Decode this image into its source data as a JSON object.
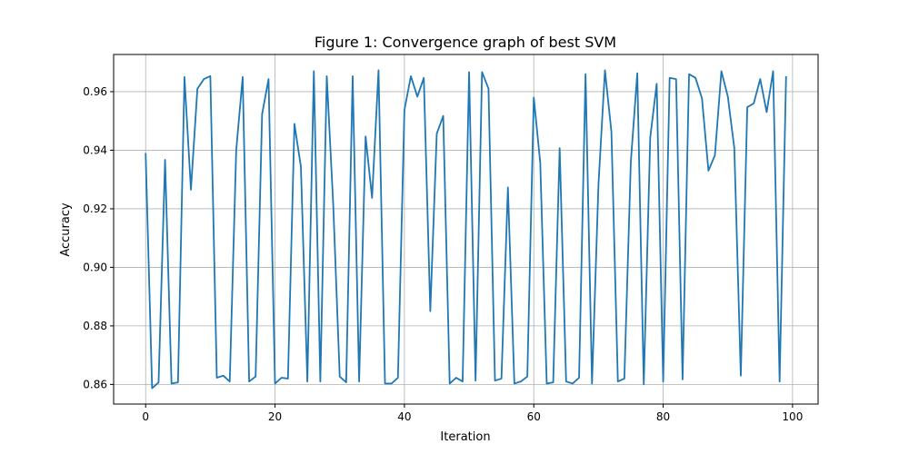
{
  "chart_data": {
    "type": "line",
    "title": "Figure 1: Convergence graph of best SVM",
    "xlabel": "Iteration",
    "ylabel": "Accuracy",
    "xlim": [
      -4.95,
      103.95
    ],
    "ylim": [
      0.8533,
      0.9727
    ],
    "xticks": [
      0,
      20,
      40,
      60,
      80,
      100
    ],
    "yticks": [
      0.86,
      0.88,
      0.9,
      0.92,
      0.94,
      0.96
    ],
    "ytick_labels": [
      "0.86",
      "0.88",
      "0.90",
      "0.92",
      "0.94",
      "0.96"
    ],
    "grid": true,
    "series": [
      {
        "color": "#1f77b4",
        "x": [
          0,
          1,
          2,
          3,
          4,
          5,
          6,
          7,
          8,
          9,
          10,
          11,
          12,
          13,
          14,
          15,
          16,
          17,
          18,
          19,
          20,
          21,
          22,
          23,
          24,
          25,
          26,
          27,
          28,
          29,
          30,
          31,
          32,
          33,
          34,
          35,
          36,
          37,
          38,
          39,
          40,
          41,
          42,
          43,
          44,
          45,
          46,
          47,
          48,
          49,
          50,
          51,
          52,
          53,
          54,
          55,
          56,
          57,
          58,
          59,
          60,
          61,
          62,
          63,
          64,
          65,
          66,
          67,
          68,
          69,
          70,
          71,
          72,
          73,
          74,
          75,
          76,
          77,
          78,
          79,
          80,
          81,
          82,
          83,
          84,
          85,
          86,
          87,
          88,
          89,
          90,
          91,
          92,
          93,
          94,
          95,
          96,
          97,
          98,
          99
        ],
        "values": [
          0.939,
          0.8587,
          0.8607,
          0.9367,
          0.8603,
          0.8607,
          0.965,
          0.9265,
          0.961,
          0.9643,
          0.9653,
          0.8623,
          0.863,
          0.861,
          0.94,
          0.965,
          0.861,
          0.8627,
          0.9523,
          0.9643,
          0.8603,
          0.8623,
          0.862,
          0.949,
          0.9343,
          0.861,
          0.967,
          0.861,
          0.9653,
          0.9213,
          0.8627,
          0.8607,
          0.9653,
          0.861,
          0.9447,
          0.9237,
          0.9673,
          0.8603,
          0.8603,
          0.8623,
          0.9537,
          0.9653,
          0.9583,
          0.9647,
          0.885,
          0.9457,
          0.9517,
          0.8603,
          0.8623,
          0.861,
          0.9667,
          0.8613,
          0.9667,
          0.961,
          0.8613,
          0.862,
          0.9273,
          0.8603,
          0.861,
          0.8627,
          0.958,
          0.9357,
          0.8603,
          0.8607,
          0.9407,
          0.861,
          0.8603,
          0.8623,
          0.966,
          0.8603,
          0.9283,
          0.9673,
          0.9463,
          0.861,
          0.862,
          0.936,
          0.9663,
          0.86,
          0.9443,
          0.9627,
          0.861,
          0.9647,
          0.9643,
          0.8617,
          0.966,
          0.9647,
          0.9577,
          0.933,
          0.9383,
          0.967,
          0.9583,
          0.9407,
          0.863,
          0.9547,
          0.956,
          0.9643,
          0.953,
          0.967,
          0.861,
          0.9653
        ]
      }
    ]
  }
}
